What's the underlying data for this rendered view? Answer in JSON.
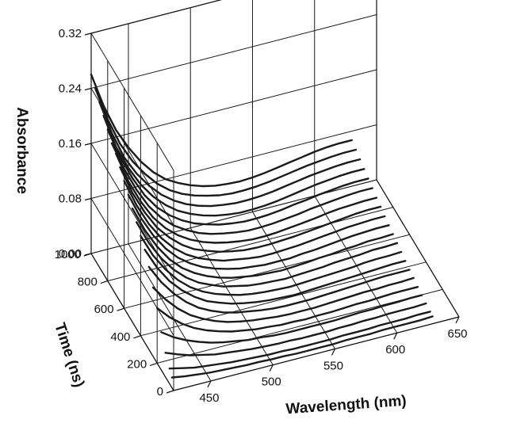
{
  "chart_data": {
    "type": "line",
    "chart_kind": "3d waterfall",
    "title": "",
    "xlabel": "Wavelength (nm)",
    "ylabel": "Time (ns)",
    "zlabel": "Absorbance",
    "xlim": [
      420,
      650
    ],
    "ylim": [
      0,
      1000
    ],
    "zlim": [
      0,
      0.32
    ],
    "x_ticks": [
      "450",
      "500",
      "550",
      "600",
      "650"
    ],
    "y_ticks": [
      "0",
      "200",
      "400",
      "600",
      "800",
      "1000"
    ],
    "z_ticks": [
      "0.00",
      "0.08",
      "0.16",
      "0.24",
      "0.32"
    ],
    "grid": true,
    "x": [
      420,
      430,
      440,
      450,
      460,
      470,
      480,
      490,
      500,
      510,
      520,
      530,
      540,
      550,
      560,
      570,
      580,
      590,
      600,
      610,
      620,
      630
    ],
    "series": [
      {
        "time": 1000,
        "values": [
          0.26,
          0.21,
          0.17,
          0.14,
          0.115,
          0.095,
          0.08,
          0.07,
          0.062,
          0.056,
          0.052,
          0.05,
          0.049,
          0.05,
          0.052,
          0.055,
          0.058,
          0.061,
          0.064,
          0.066,
          0.067,
          0.067
        ]
      },
      {
        "time": 950,
        "values": [
          0.25,
          0.2,
          0.16,
          0.13,
          0.107,
          0.088,
          0.074,
          0.064,
          0.057,
          0.052,
          0.048,
          0.046,
          0.046,
          0.047,
          0.049,
          0.052,
          0.055,
          0.058,
          0.06,
          0.062,
          0.063,
          0.063
        ]
      },
      {
        "time": 900,
        "values": [
          0.24,
          0.19,
          0.15,
          0.122,
          0.1,
          0.082,
          0.069,
          0.059,
          0.052,
          0.047,
          0.044,
          0.042,
          0.042,
          0.043,
          0.045,
          0.048,
          0.051,
          0.054,
          0.056,
          0.058,
          0.059,
          0.059
        ]
      },
      {
        "time": 850,
        "values": [
          0.23,
          0.18,
          0.145,
          0.116,
          0.094,
          0.077,
          0.064,
          0.055,
          0.048,
          0.043,
          0.04,
          0.038,
          0.038,
          0.039,
          0.041,
          0.044,
          0.047,
          0.05,
          0.052,
          0.054,
          0.055,
          0.055
        ]
      },
      {
        "time": 800,
        "values": [
          0.22,
          0.175,
          0.14,
          0.11,
          0.088,
          0.072,
          0.06,
          0.051,
          0.045,
          0.04,
          0.037,
          0.035,
          0.035,
          0.036,
          0.038,
          0.041,
          0.043,
          0.046,
          0.048,
          0.05,
          0.051,
          0.051
        ]
      },
      {
        "time": 750,
        "values": [
          0.21,
          0.168,
          0.133,
          0.104,
          0.083,
          0.067,
          0.056,
          0.047,
          0.041,
          0.037,
          0.034,
          0.032,
          0.032,
          0.033,
          0.035,
          0.037,
          0.04,
          0.042,
          0.044,
          0.046,
          0.047,
          0.047
        ]
      },
      {
        "time": 700,
        "values": [
          0.205,
          0.16,
          0.126,
          0.098,
          0.078,
          0.063,
          0.052,
          0.044,
          0.038,
          0.034,
          0.031,
          0.029,
          0.029,
          0.03,
          0.032,
          0.034,
          0.036,
          0.039,
          0.041,
          0.042,
          0.043,
          0.043
        ]
      },
      {
        "time": 650,
        "values": [
          0.195,
          0.153,
          0.12,
          0.093,
          0.074,
          0.059,
          0.048,
          0.041,
          0.035,
          0.031,
          0.028,
          0.027,
          0.027,
          0.028,
          0.029,
          0.031,
          0.033,
          0.035,
          0.037,
          0.039,
          0.04,
          0.04
        ]
      },
      {
        "time": 600,
        "values": [
          0.185,
          0.145,
          0.113,
          0.088,
          0.069,
          0.055,
          0.045,
          0.038,
          0.032,
          0.029,
          0.026,
          0.024,
          0.024,
          0.025,
          0.026,
          0.028,
          0.03,
          0.032,
          0.034,
          0.035,
          0.036,
          0.036
        ]
      },
      {
        "time": 550,
        "values": [
          0.175,
          0.137,
          0.107,
          0.083,
          0.065,
          0.052,
          0.042,
          0.035,
          0.03,
          0.026,
          0.024,
          0.022,
          0.022,
          0.022,
          0.024,
          0.025,
          0.027,
          0.029,
          0.031,
          0.032,
          0.033,
          0.033
        ]
      },
      {
        "time": 500,
        "values": [
          0.165,
          0.129,
          0.1,
          0.077,
          0.06,
          0.048,
          0.039,
          0.032,
          0.027,
          0.024,
          0.021,
          0.02,
          0.019,
          0.02,
          0.021,
          0.023,
          0.024,
          0.026,
          0.027,
          0.029,
          0.029,
          0.03
        ]
      },
      {
        "time": 450,
        "values": [
          0.155,
          0.12,
          0.093,
          0.072,
          0.056,
          0.044,
          0.036,
          0.029,
          0.025,
          0.021,
          0.019,
          0.018,
          0.017,
          0.018,
          0.019,
          0.02,
          0.022,
          0.023,
          0.024,
          0.026,
          0.026,
          0.027
        ]
      },
      {
        "time": 400,
        "values": [
          0.145,
          0.112,
          0.087,
          0.067,
          0.052,
          0.041,
          0.033,
          0.027,
          0.022,
          0.019,
          0.017,
          0.016,
          0.015,
          0.016,
          0.017,
          0.018,
          0.019,
          0.02,
          0.022,
          0.023,
          0.023,
          0.024
        ]
      },
      {
        "time": 350,
        "values": [
          0.135,
          0.104,
          0.08,
          0.062,
          0.048,
          0.037,
          0.03,
          0.024,
          0.02,
          0.017,
          0.015,
          0.014,
          0.013,
          0.014,
          0.015,
          0.016,
          0.017,
          0.018,
          0.019,
          0.02,
          0.021,
          0.021
        ]
      },
      {
        "time": 300,
        "values": [
          0.12,
          0.093,
          0.072,
          0.055,
          0.042,
          0.033,
          0.026,
          0.021,
          0.018,
          0.015,
          0.013,
          0.012,
          0.012,
          0.012,
          0.013,
          0.014,
          0.015,
          0.016,
          0.017,
          0.018,
          0.018,
          0.018
        ]
      },
      {
        "time": 250,
        "values": [
          0.1,
          0.078,
          0.06,
          0.046,
          0.036,
          0.028,
          0.022,
          0.018,
          0.015,
          0.013,
          0.011,
          0.01,
          0.01,
          0.01,
          0.011,
          0.012,
          0.013,
          0.014,
          0.014,
          0.015,
          0.015,
          0.016
        ]
      },
      {
        "time": 200,
        "values": [
          0.08,
          0.062,
          0.048,
          0.037,
          0.029,
          0.023,
          0.018,
          0.015,
          0.012,
          0.011,
          0.009,
          0.009,
          0.008,
          0.009,
          0.009,
          0.01,
          0.011,
          0.011,
          0.012,
          0.013,
          0.013,
          0.013
        ]
      },
      {
        "time": 150,
        "values": [
          0.055,
          0.043,
          0.034,
          0.027,
          0.021,
          0.017,
          0.014,
          0.011,
          0.01,
          0.008,
          0.007,
          0.007,
          0.007,
          0.007,
          0.007,
          0.008,
          0.009,
          0.009,
          0.01,
          0.01,
          0.011,
          0.011
        ]
      },
      {
        "time": 100,
        "values": [
          0.035,
          0.028,
          0.022,
          0.018,
          0.014,
          0.012,
          0.01,
          0.008,
          0.007,
          0.006,
          0.006,
          0.005,
          0.005,
          0.005,
          0.006,
          0.006,
          0.007,
          0.007,
          0.008,
          0.008,
          0.008,
          0.009
        ]
      },
      {
        "time": 50,
        "values": [
          0.022,
          0.018,
          0.014,
          0.012,
          0.01,
          0.008,
          0.007,
          0.006,
          0.005,
          0.005,
          0.004,
          0.004,
          0.004,
          0.004,
          0.005,
          0.005,
          0.005,
          0.006,
          0.006,
          0.006,
          0.007,
          0.007
        ]
      },
      {
        "time": 20,
        "values": [
          0.015,
          0.012,
          0.01,
          0.008,
          0.007,
          0.006,
          0.005,
          0.005,
          0.004,
          0.004,
          0.003,
          0.003,
          0.003,
          0.003,
          0.004,
          0.004,
          0.004,
          0.005,
          0.005,
          0.005,
          0.005,
          0.006
        ]
      }
    ]
  }
}
